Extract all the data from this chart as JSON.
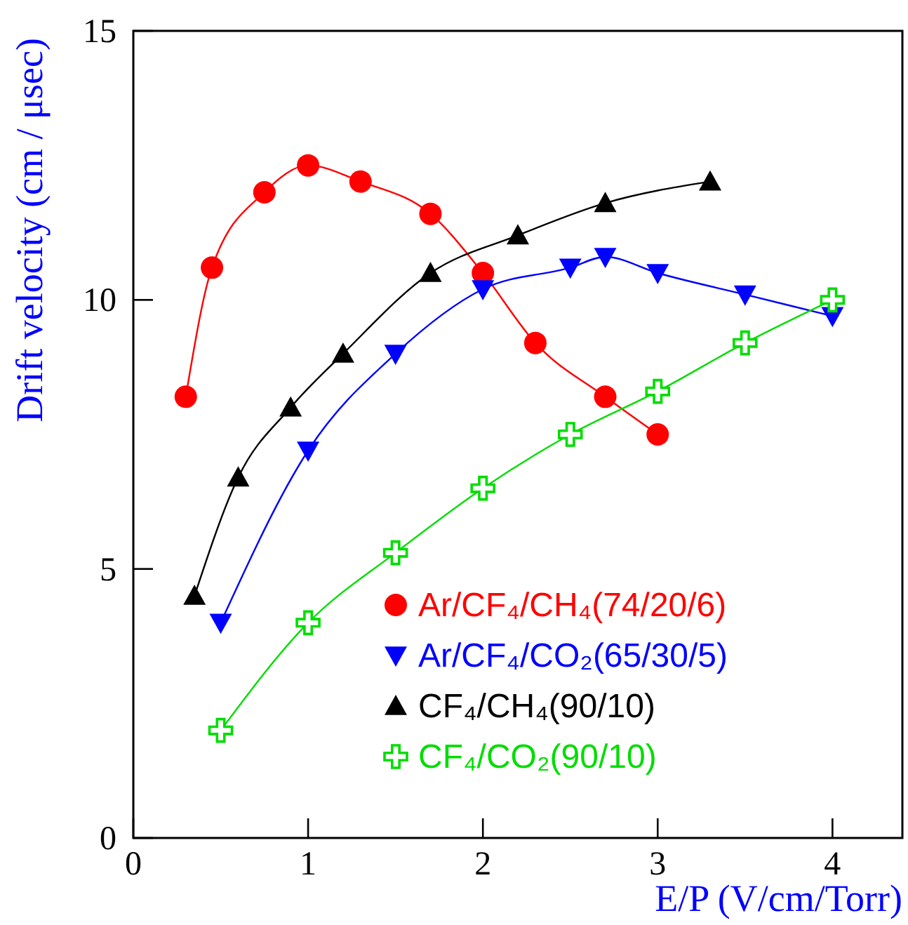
{
  "chart_data": {
    "type": "line",
    "xlabel": "E/P (V/cm/Torr)",
    "ylabel": "Drift velocity (cm / μsec)",
    "xlim": [
      0,
      4.4
    ],
    "ylim": [
      0,
      15
    ],
    "xticks": [
      0,
      1,
      2,
      3,
      4
    ],
    "yticks": [
      0,
      5,
      10,
      15
    ],
    "grid": false,
    "legend": "bottom right",
    "series": [
      {
        "name": "Ar/CF₄/CH₄(74/20/6)",
        "color": "#ff0000",
        "marker": "circle",
        "x": [
          0.3,
          0.45,
          0.75,
          1.0,
          1.3,
          1.7,
          2.0,
          2.3,
          2.7,
          3.0
        ],
        "values": [
          8.2,
          10.6,
          12.0,
          12.5,
          12.2,
          11.6,
          10.5,
          9.2,
          8.2,
          7.5
        ]
      },
      {
        "name": "Ar/CF₄/CO₂(65/30/5)",
        "color": "#0000ff",
        "marker": "triangle-down",
        "x": [
          0.5,
          1.0,
          1.5,
          2.0,
          2.5,
          2.7,
          3.0,
          3.5,
          4.0
        ],
        "values": [
          4.0,
          7.2,
          9.0,
          10.2,
          10.6,
          10.8,
          10.5,
          10.1,
          9.7
        ]
      },
      {
        "name": "CF₄/CH₄(90/10)",
        "color": "#000000",
        "marker": "triangle",
        "x": [
          0.35,
          0.6,
          0.9,
          1.2,
          1.7,
          2.2,
          2.7,
          3.3
        ],
        "values": [
          4.5,
          6.7,
          8.0,
          9.0,
          10.5,
          11.2,
          11.8,
          12.2
        ]
      },
      {
        "name": "CF₄/CO₂(90/10)",
        "color": "#00dd00",
        "marker": "cross",
        "x": [
          0.5,
          1.0,
          1.5,
          2.0,
          2.5,
          3.0,
          3.5,
          4.0
        ],
        "values": [
          2.0,
          4.0,
          5.3,
          6.5,
          7.5,
          8.3,
          9.2,
          10.0
        ]
      }
    ]
  }
}
